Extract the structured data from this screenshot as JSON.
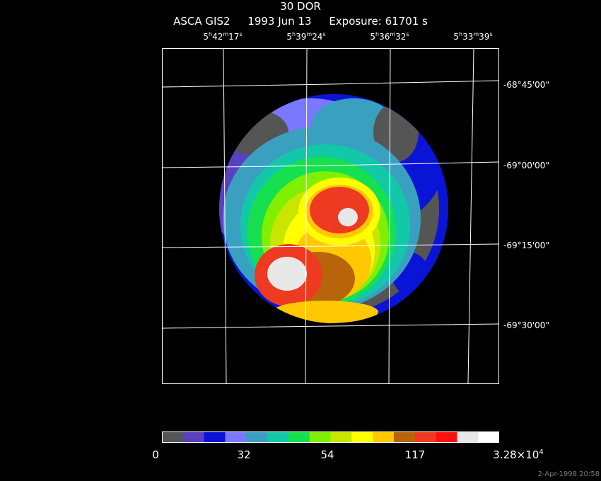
{
  "header": {
    "object": "30 DOR",
    "instrument": "ASCA GIS2",
    "date": "1993 Jun 13",
    "exposure": "Exposure: 61701 s"
  },
  "ra_ticks": [
    {
      "h": "5",
      "m": "42",
      "s": "17"
    },
    {
      "h": "5",
      "m": "39",
      "s": "24"
    },
    {
      "h": "5",
      "m": "36",
      "s": "32"
    },
    {
      "h": "5",
      "m": "33",
      "s": "39"
    }
  ],
  "dec_ticks": [
    "-68°45'00\"",
    "-69°00'00\"",
    "-69°15'00\"",
    "-69°30'00\""
  ],
  "colorbar": {
    "colors": [
      "#555555",
      "#5a3fbf",
      "#0a14d6",
      "#7a78ff",
      "#3aa0c0",
      "#12c8a8",
      "#16e050",
      "#80f000",
      "#c8e600",
      "#ffff00",
      "#ffc800",
      "#b8640a",
      "#ee3a20",
      "#ff1010",
      "#e8e8e8",
      "#ffffff"
    ],
    "labels": {
      "l0": "0",
      "l1": "32",
      "l2": "54",
      "l3": "117",
      "l4_base": "3.28×10",
      "l4_exp": "4"
    }
  },
  "footer": "2-Apr-1998 20:58"
}
